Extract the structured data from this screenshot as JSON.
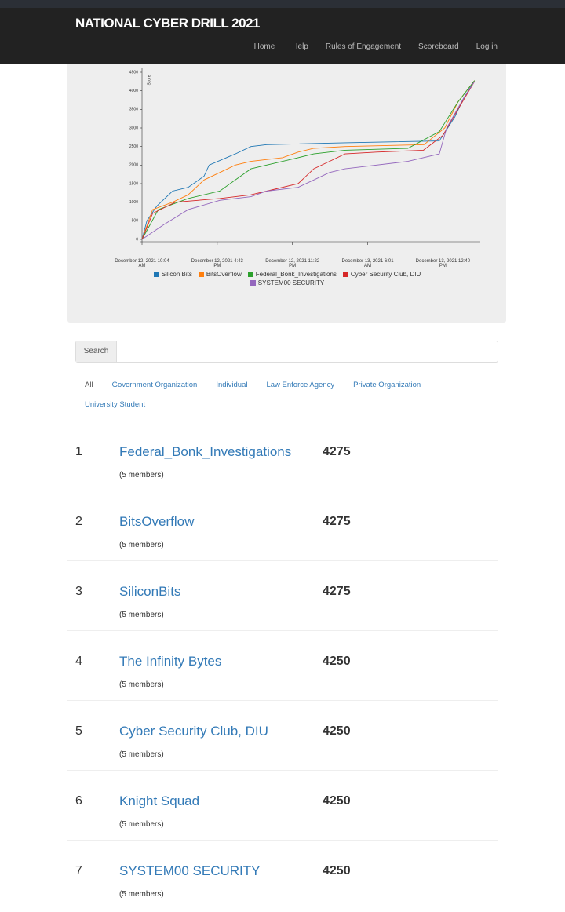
{
  "header": {
    "title": "NATIONAL CYBER DRILL 2021",
    "nav": [
      "Home",
      "Help",
      "Rules of Engagement",
      "Scoreboard",
      "Log in"
    ]
  },
  "chart_data": {
    "type": "line",
    "y_label": "Score",
    "xlim": [
      "2021-12-12T10:04",
      "2021-12-13T15:50"
    ],
    "xticks": [
      {
        "value": "2021-12-12T10:04",
        "label": "December 12, 2021 10:04 AM"
      },
      {
        "value": "2021-12-12T16:43",
        "label": "December 12, 2021 4:43 PM"
      },
      {
        "value": "2021-12-12T23:22",
        "label": "December 12, 2021 11:22 PM"
      },
      {
        "value": "2021-12-13T06:01",
        "label": "December 13, 2021 6:01 AM"
      },
      {
        "value": "2021-12-13T12:40",
        "label": "December 13, 2021 12:40 PM"
      }
    ],
    "ylim": [
      0,
      4500
    ],
    "yticks": [
      0,
      500,
      1000,
      1500,
      2000,
      2500,
      3000,
      3500,
      4000,
      4500
    ],
    "series": [
      {
        "name": "Silicon Bits",
        "color": "#1f77b4",
        "x": [
          "2021-12-12T10:04",
          "2021-12-12T10:30",
          "2021-12-12T11:23",
          "2021-12-12T12:46",
          "2021-12-12T14:09",
          "2021-12-12T15:33",
          "2021-12-12T16:00",
          "2021-12-12T18:19",
          "2021-12-12T19:42",
          "2021-12-12T21:05",
          "2021-12-13T04:01",
          "2021-12-13T12:21",
          "2021-12-13T13:44",
          "2021-12-13T14:30",
          "2021-12-13T15:28"
        ],
        "values": [
          0,
          500,
          900,
          1300,
          1400,
          1700,
          2000,
          2300,
          2500,
          2550,
          2600,
          2650,
          3300,
          3800,
          4275
        ]
      },
      {
        "name": "BitsOverflow",
        "color": "#ff7f0e",
        "x": [
          "2021-12-12T10:04",
          "2021-12-12T11:00",
          "2021-12-12T12:46",
          "2021-12-12T14:09",
          "2021-12-12T15:33",
          "2021-12-12T16:56",
          "2021-12-12T18:19",
          "2021-12-12T19:42",
          "2021-12-12T22:29",
          "2021-12-12T23:52",
          "2021-12-13T01:15",
          "2021-12-13T04:01",
          "2021-12-13T11:00",
          "2021-12-13T12:50",
          "2021-12-13T14:00",
          "2021-12-13T15:28"
        ],
        "values": [
          0,
          800,
          1000,
          1200,
          1600,
          1800,
          2000,
          2100,
          2200,
          2350,
          2450,
          2500,
          2550,
          3000,
          3700,
          4275
        ]
      },
      {
        "name": "Federal_Bonk_Investigations",
        "color": "#2ca02c",
        "x": [
          "2021-12-12T10:04",
          "2021-12-12T11:30",
          "2021-12-12T14:09",
          "2021-12-12T16:56",
          "2021-12-12T18:19",
          "2021-12-12T19:42",
          "2021-12-12T21:05",
          "2021-12-12T23:52",
          "2021-12-13T01:15",
          "2021-12-13T04:01",
          "2021-12-13T09:34",
          "2021-12-13T12:21",
          "2021-12-13T14:00",
          "2021-12-13T15:28"
        ],
        "values": [
          0,
          800,
          1100,
          1300,
          1600,
          1900,
          2000,
          2200,
          2300,
          2400,
          2450,
          2900,
          3700,
          4275
        ]
      },
      {
        "name": "Cyber Security Club, DIU",
        "color": "#d62728",
        "x": [
          "2021-12-12T10:04",
          "2021-12-12T11:00",
          "2021-12-12T13:00",
          "2021-12-12T16:56",
          "2021-12-12T19:42",
          "2021-12-12T21:05",
          "2021-12-12T23:52",
          "2021-12-13T01:15",
          "2021-12-13T02:38",
          "2021-12-13T04:01",
          "2021-12-13T06:48",
          "2021-12-13T10:57",
          "2021-12-13T12:40",
          "2021-12-13T14:00",
          "2021-12-13T15:28"
        ],
        "values": [
          0,
          700,
          1000,
          1100,
          1200,
          1300,
          1500,
          1900,
          2100,
          2300,
          2350,
          2400,
          2800,
          3500,
          4250
        ]
      },
      {
        "name": "SYSTEM00 SECURITY",
        "color": "#9467bd",
        "x": [
          "2021-12-12T10:04",
          "2021-12-12T12:00",
          "2021-12-12T14:09",
          "2021-12-12T16:56",
          "2021-12-12T19:42",
          "2021-12-12T21:05",
          "2021-12-12T23:52",
          "2021-12-13T01:15",
          "2021-12-13T02:38",
          "2021-12-13T04:01",
          "2021-12-13T05:25",
          "2021-12-13T09:34",
          "2021-12-13T12:21",
          "2021-12-13T13:00",
          "2021-12-13T14:30",
          "2021-12-13T15:28"
        ],
        "values": [
          0,
          400,
          800,
          1050,
          1150,
          1300,
          1400,
          1600,
          1800,
          1900,
          1950,
          2100,
          2300,
          3000,
          3800,
          4250
        ]
      }
    ]
  },
  "search": {
    "label": "Search"
  },
  "tabs": [
    "All",
    "Government Organization",
    "Individual",
    "Law Enforce Agency",
    "Private Organization",
    "University Student"
  ],
  "leaderboard": {
    "rows": [
      {
        "rank": 1,
        "name": "Federal_Bonk_Investigations",
        "members": "(5 members)",
        "score": 4275
      },
      {
        "rank": 2,
        "name": "BitsOverflow",
        "members": "(5 members)",
        "score": 4275
      },
      {
        "rank": 3,
        "name": "SiliconBits",
        "members": "(5 members)",
        "score": 4275
      },
      {
        "rank": 4,
        "name": "The Infinity Bytes",
        "members": "(5 members)",
        "score": 4250
      },
      {
        "rank": 5,
        "name": "Cyber Security Club, DIU",
        "members": "(5 members)",
        "score": 4250
      },
      {
        "rank": 6,
        "name": "Knight Squad",
        "members": "(5 members)",
        "score": 4250
      },
      {
        "rank": 7,
        "name": "SYSTEM00 SECURITY",
        "members": "(5 members)",
        "score": 4250
      }
    ]
  }
}
